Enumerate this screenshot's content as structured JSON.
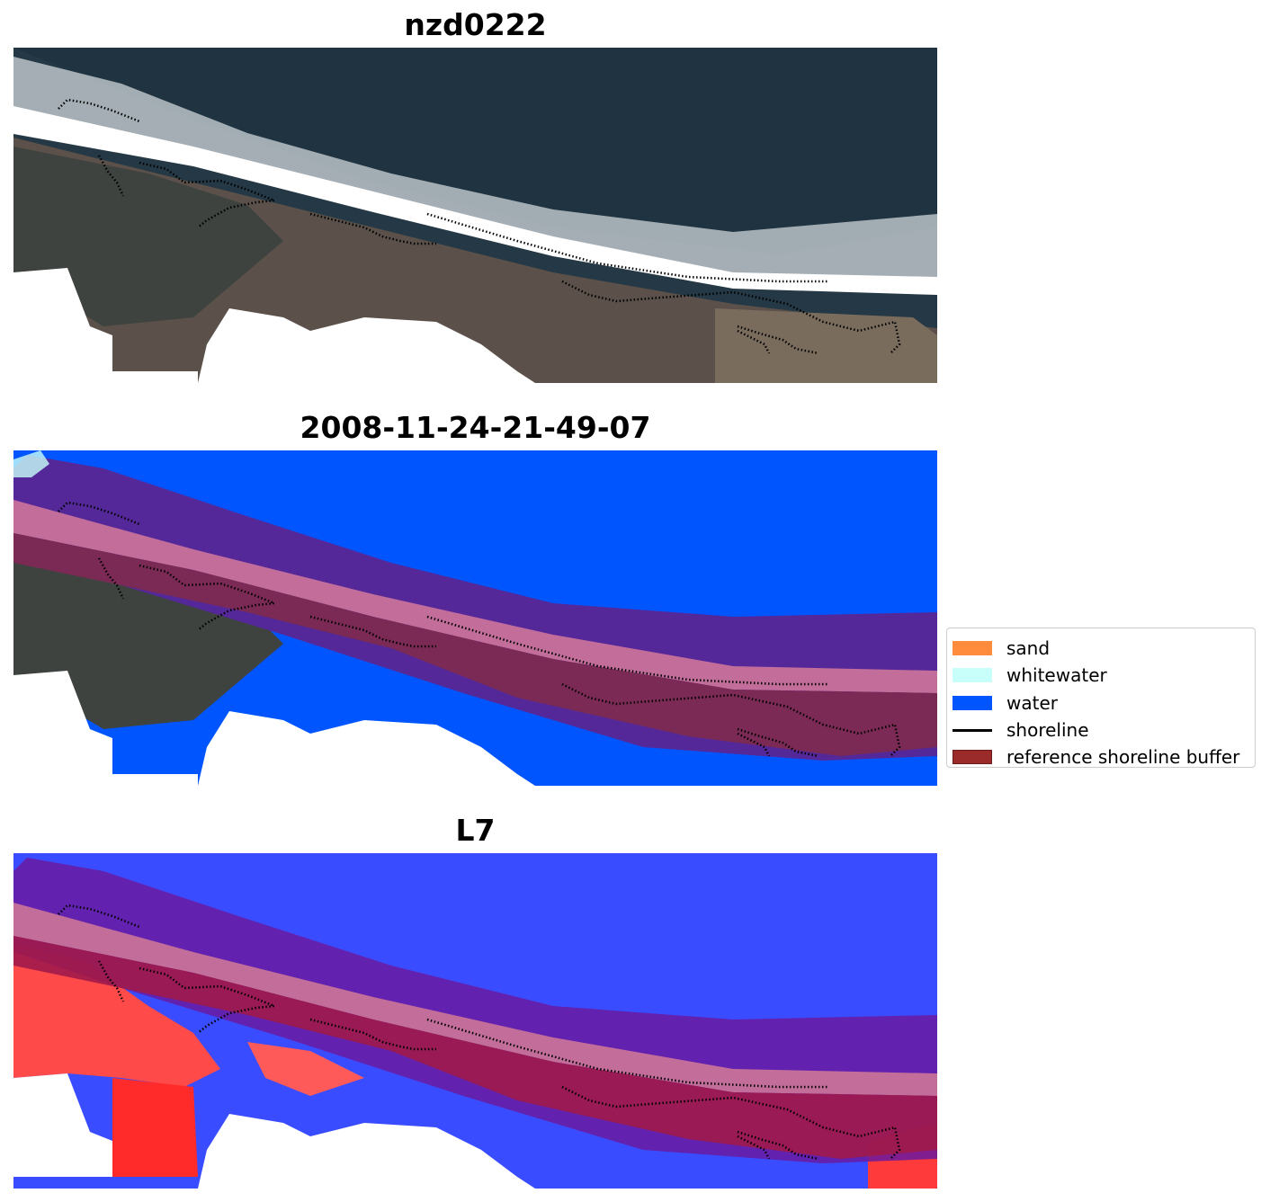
{
  "panels": [
    {
      "title": "nzd0222"
    },
    {
      "title": "2008-11-24-21-49-07"
    },
    {
      "title": "L7"
    }
  ],
  "legend": [
    {
      "label": "sand",
      "kind": "patch",
      "color": "#ff8c3c"
    },
    {
      "label": "whitewater",
      "kind": "patch",
      "color": "#c8fffa"
    },
    {
      "label": "water",
      "kind": "patch",
      "color": "#0055ff"
    },
    {
      "label": "shoreline",
      "kind": "line",
      "color": "#000000"
    },
    {
      "label": "reference shoreline buffer",
      "kind": "patch",
      "color": "#9b2a2a"
    }
  ],
  "colors": {
    "sea_rgb": "#243845",
    "land_rgb": "#5c524a",
    "water_class": "#0055ff",
    "buffer_overlay": "#8b2a6b",
    "index_positive": "#ff2a2a",
    "index_negative": "#2a3cff",
    "nodata": "#ffffff"
  }
}
